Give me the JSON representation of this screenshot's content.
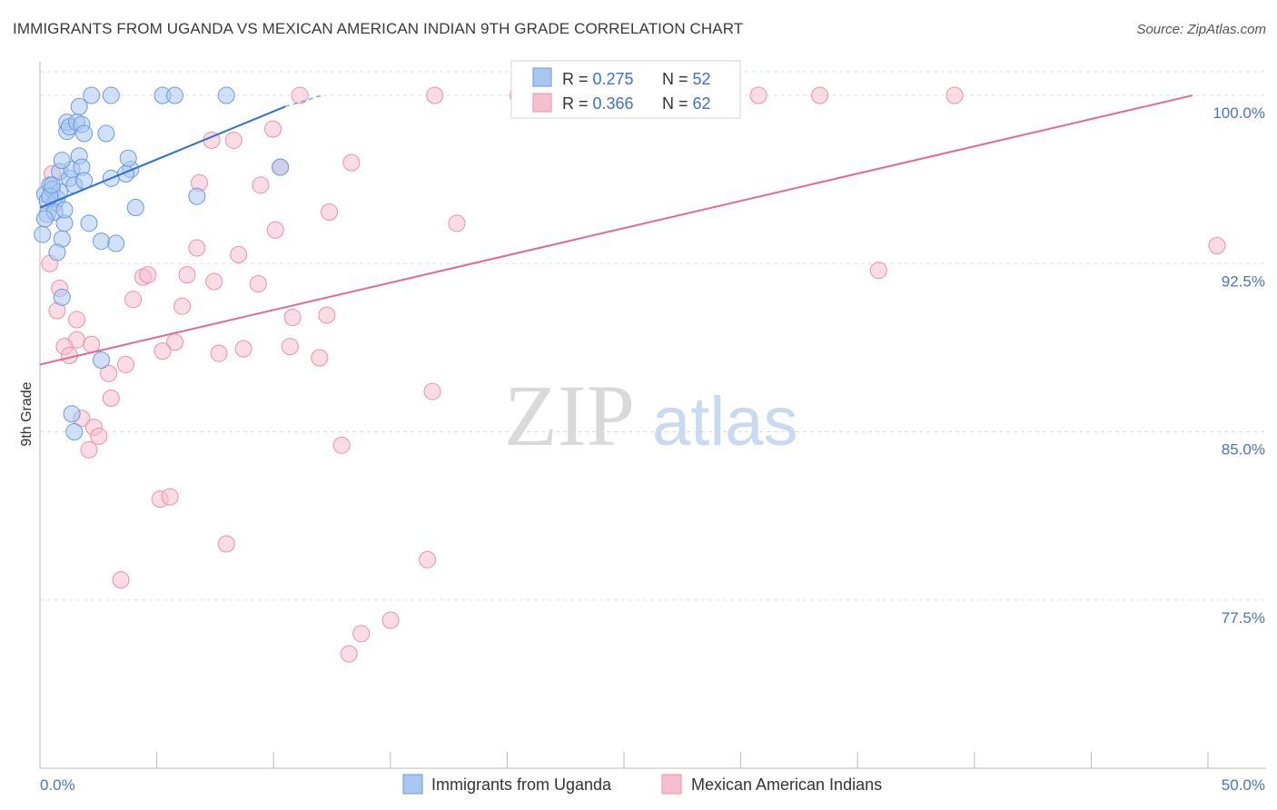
{
  "title": "IMMIGRANTS FROM UGANDA VS MEXICAN AMERICAN INDIAN 9TH GRADE CORRELATION CHART",
  "source": "Source: ZipAtlas.com",
  "watermark": {
    "zip": "ZIP",
    "atlas": "atlas"
  },
  "colors": {
    "blue_fill": "#a9c6ee",
    "blue_stroke": "#6a9ae0",
    "blue_line": "#2f6fd0",
    "pink_fill": "#f6bfd0",
    "pink_stroke": "#ee8fad",
    "pink_line": "#e06a94",
    "grid": "#dddddd",
    "tick_text": "#4a72c8"
  },
  "legend": {
    "rows": [
      {
        "r_label": "R = ",
        "r_value": "0.275",
        "n_label": "N = ",
        "n_value": "52"
      },
      {
        "r_label": "R = ",
        "r_value": "0.366",
        "n_label": "N = ",
        "n_value": "62"
      }
    ]
  },
  "chart_data": {
    "type": "scatter",
    "ylabel": "9th Grade",
    "xlim": [
      0,
      50
    ],
    "ylim": [
      70.0,
      101.5
    ],
    "x_tick_labels": [
      {
        "value": 0,
        "label": "0.0%"
      },
      {
        "value": 50,
        "label": "50.0%"
      }
    ],
    "y_ticks": [
      {
        "value": 100.0,
        "label": "100.0%"
      },
      {
        "value": 92.5,
        "label": "92.5%"
      },
      {
        "value": 85.0,
        "label": "85.0%"
      },
      {
        "value": 77.5,
        "label": "77.5%"
      }
    ],
    "grid": true,
    "legend_position": "top-center",
    "series": [
      {
        "name": "Immigrants from Uganda",
        "color": "#a9c6ee",
        "trend": {
          "x": [
            0.0,
            10.0
          ],
          "y": [
            95.0,
            99.5
          ],
          "dashed_to": [
            11.5,
            100.0
          ]
        },
        "points": [
          [
            0.2,
            95.6
          ],
          [
            0.3,
            95.3
          ],
          [
            0.4,
            96.0
          ],
          [
            0.5,
            95.8
          ],
          [
            0.6,
            95.2
          ],
          [
            0.7,
            95.4
          ],
          [
            0.8,
            95.7
          ],
          [
            0.3,
            94.7
          ],
          [
            0.6,
            94.8
          ],
          [
            0.9,
            93.6
          ],
          [
            1.0,
            94.3
          ],
          [
            1.0,
            94.9
          ],
          [
            0.8,
            96.6
          ],
          [
            1.2,
            96.3
          ],
          [
            1.3,
            96.7
          ],
          [
            1.4,
            96.0
          ],
          [
            1.6,
            97.3
          ],
          [
            1.7,
            96.8
          ],
          [
            1.8,
            96.2
          ],
          [
            0.9,
            97.1
          ],
          [
            1.1,
            98.4
          ],
          [
            1.1,
            98.8
          ],
          [
            1.2,
            98.6
          ],
          [
            1.5,
            98.8
          ],
          [
            1.7,
            98.7
          ],
          [
            1.8,
            98.3
          ],
          [
            1.6,
            99.5
          ],
          [
            2.1,
            100.0
          ],
          [
            2.9,
            100.0
          ],
          [
            5.0,
            100.0
          ],
          [
            5.5,
            100.0
          ],
          [
            7.6,
            100.0
          ],
          [
            2.7,
            98.3
          ],
          [
            3.7,
            96.7
          ],
          [
            3.6,
            97.2
          ],
          [
            3.5,
            96.5
          ],
          [
            2.9,
            96.3
          ],
          [
            3.9,
            95.0
          ],
          [
            6.4,
            95.5
          ],
          [
            9.8,
            96.8
          ],
          [
            2.0,
            94.3
          ],
          [
            2.5,
            93.5
          ],
          [
            3.1,
            93.4
          ],
          [
            0.7,
            93.0
          ],
          [
            0.9,
            91.0
          ],
          [
            0.1,
            93.8
          ],
          [
            0.2,
            94.5
          ],
          [
            1.3,
            85.8
          ],
          [
            1.4,
            85.0
          ],
          [
            2.5,
            88.2
          ],
          [
            0.4,
            95.5
          ],
          [
            0.5,
            96.0
          ]
        ]
      },
      {
        "name": "Mexican American Indians",
        "color": "#f6bfd0",
        "trend": {
          "x": [
            0.0,
            47.0
          ],
          "y": [
            88.0,
            100.0
          ]
        },
        "points": [
          [
            10.6,
            100.0
          ],
          [
            16.1,
            100.0
          ],
          [
            19.5,
            100.0
          ],
          [
            26.5,
            100.0
          ],
          [
            29.3,
            100.0
          ],
          [
            31.8,
            100.0
          ],
          [
            37.3,
            100.0
          ],
          [
            7.0,
            98.0
          ],
          [
            7.9,
            98.0
          ],
          [
            9.5,
            98.5
          ],
          [
            12.7,
            97.0
          ],
          [
            9.8,
            96.8
          ],
          [
            6.5,
            96.1
          ],
          [
            9.0,
            96.0
          ],
          [
            11.8,
            94.8
          ],
          [
            17.0,
            94.3
          ],
          [
            9.6,
            94.0
          ],
          [
            6.4,
            93.2
          ],
          [
            8.1,
            92.9
          ],
          [
            0.4,
            92.5
          ],
          [
            6.0,
            92.0
          ],
          [
            4.2,
            91.9
          ],
          [
            4.4,
            92.0
          ],
          [
            7.1,
            91.7
          ],
          [
            8.9,
            91.6
          ],
          [
            3.8,
            90.9
          ],
          [
            5.8,
            90.6
          ],
          [
            0.7,
            90.4
          ],
          [
            10.3,
            90.1
          ],
          [
            11.7,
            90.2
          ],
          [
            1.5,
            89.1
          ],
          [
            1.0,
            88.8
          ],
          [
            1.2,
            88.4
          ],
          [
            5.5,
            89.0
          ],
          [
            5.0,
            88.6
          ],
          [
            7.3,
            88.5
          ],
          [
            8.3,
            88.7
          ],
          [
            10.2,
            88.8
          ],
          [
            11.4,
            88.3
          ],
          [
            3.5,
            88.0
          ],
          [
            2.8,
            87.6
          ],
          [
            16.0,
            86.8
          ],
          [
            2.9,
            86.5
          ],
          [
            1.7,
            85.6
          ],
          [
            2.2,
            85.2
          ],
          [
            2.4,
            84.8
          ],
          [
            2.0,
            84.2
          ],
          [
            12.3,
            84.4
          ],
          [
            4.9,
            82.0
          ],
          [
            5.3,
            82.1
          ],
          [
            7.6,
            80.0
          ],
          [
            15.8,
            79.3
          ],
          [
            3.3,
            78.4
          ],
          [
            14.3,
            76.6
          ],
          [
            13.1,
            76.0
          ],
          [
            12.6,
            75.1
          ],
          [
            34.2,
            92.2
          ],
          [
            48.0,
            93.3
          ],
          [
            0.5,
            96.5
          ],
          [
            1.5,
            90.0
          ],
          [
            2.1,
            88.9
          ],
          [
            0.8,
            91.4
          ]
        ]
      }
    ]
  },
  "bottom_legend": [
    "Immigrants from Uganda",
    "Mexican American Indians"
  ]
}
